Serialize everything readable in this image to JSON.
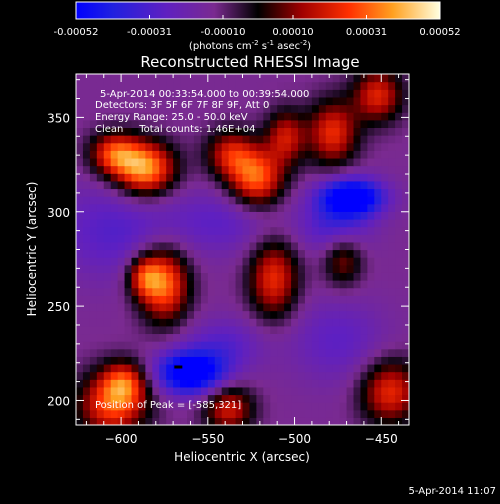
{
  "chart_data": {
    "type": "heatmap",
    "title": "Reconstructed RHESSI Image",
    "colorbar": {
      "ticks": [
        "-0.00052",
        "-0.00031",
        "-0.00010",
        "0.00010",
        "0.00031",
        "0.00052"
      ],
      "tick_values": [
        -0.00052,
        -0.00031,
        -0.0001,
        0.0001,
        0.00031,
        0.00052
      ],
      "range": [
        -0.00052,
        0.00052
      ],
      "units_line1": "(photons cm",
      "units_exp1": "-2",
      "units_line2": " s",
      "units_exp2": "-1",
      "units_line3": " asec",
      "units_exp3": "-2",
      "units_close": ")"
    },
    "xlabel": "Heliocentric X (arcsec)",
    "ylabel": "Heliocentric Y (arcsec)",
    "xlim": [
      -626,
      -434
    ],
    "ylim": [
      187,
      373
    ],
    "xticks": [
      -600,
      -550,
      -500,
      -450
    ],
    "xtick_labels": [
      "−600",
      "−550",
      "−500",
      "−450"
    ],
    "yticks": [
      200,
      250,
      300,
      350
    ],
    "ytick_labels": [
      "200",
      "250",
      "300",
      "350"
    ],
    "annotations": {
      "time": "5-Apr-2014 00:33:54.000 to 00:39:54.000",
      "detectors": "Detectors: 3F 5F 6F 7F 8F 9F, Att 0",
      "energy": "Energy Range: 25.0 - 50.0 keV",
      "clean": "Clean     Total counts: 1.46E+04",
      "peak": "Position of Peak = [-585,321]"
    },
    "peak": [
      -585,
      321
    ],
    "blobs": [
      {
        "x": -586,
        "y": 323,
        "sx": 12,
        "sy": 10,
        "amp": 0.00052
      },
      {
        "x": -604,
        "y": 331,
        "sx": 10,
        "sy": 8,
        "amp": 0.00038
      },
      {
        "x": -537,
        "y": 331,
        "sx": 10,
        "sy": 9,
        "amp": 0.0003
      },
      {
        "x": -522,
        "y": 318,
        "sx": 11,
        "sy": 11,
        "amp": 0.00044
      },
      {
        "x": -505,
        "y": 340,
        "sx": 8,
        "sy": 10,
        "amp": 0.0003
      },
      {
        "x": -478,
        "y": 342,
        "sx": 10,
        "sy": 12,
        "amp": 0.00036
      },
      {
        "x": -452,
        "y": 362,
        "sx": 10,
        "sy": 10,
        "amp": 0.00034
      },
      {
        "x": -575,
        "y": 262,
        "sx": 10,
        "sy": 14,
        "amp": 0.00045
      },
      {
        "x": -587,
        "y": 266,
        "sx": 7,
        "sy": 8,
        "amp": 0.0003
      },
      {
        "x": -512,
        "y": 265,
        "sx": 10,
        "sy": 15,
        "amp": 0.00036
      },
      {
        "x": -605,
        "y": 198,
        "sx": 14,
        "sy": 12,
        "amp": 0.0004
      },
      {
        "x": -598,
        "y": 210,
        "sx": 9,
        "sy": 8,
        "amp": 0.0003
      },
      {
        "x": -538,
        "y": 196,
        "sx": 10,
        "sy": 9,
        "amp": 0.00032
      },
      {
        "x": -445,
        "y": 205,
        "sx": 12,
        "sy": 12,
        "amp": 0.00036
      },
      {
        "x": -472,
        "y": 275,
        "sx": 8,
        "sy": 10,
        "amp": 0.00024
      },
      {
        "x": -467,
        "y": 308,
        "sx": 13,
        "sy": 7,
        "amp": -0.00052
      },
      {
        "x": -476,
        "y": 292,
        "sx": 14,
        "sy": 10,
        "amp": -0.0002
      },
      {
        "x": -560,
        "y": 215,
        "sx": 14,
        "sy": 8,
        "amp": -0.00052
      },
      {
        "x": -540,
        "y": 230,
        "sx": 16,
        "sy": 10,
        "amp": -0.00015
      },
      {
        "x": -605,
        "y": 290,
        "sx": 25,
        "sy": 18,
        "amp": -0.00016
      },
      {
        "x": -540,
        "y": 295,
        "sx": 25,
        "sy": 12,
        "amp": -0.00014
      },
      {
        "x": -475,
        "y": 232,
        "sx": 20,
        "sy": 16,
        "amp": -0.00014
      }
    ],
    "background": -0.00013
  },
  "footer": {
    "timestamp": "5-Apr-2014 11:07"
  }
}
